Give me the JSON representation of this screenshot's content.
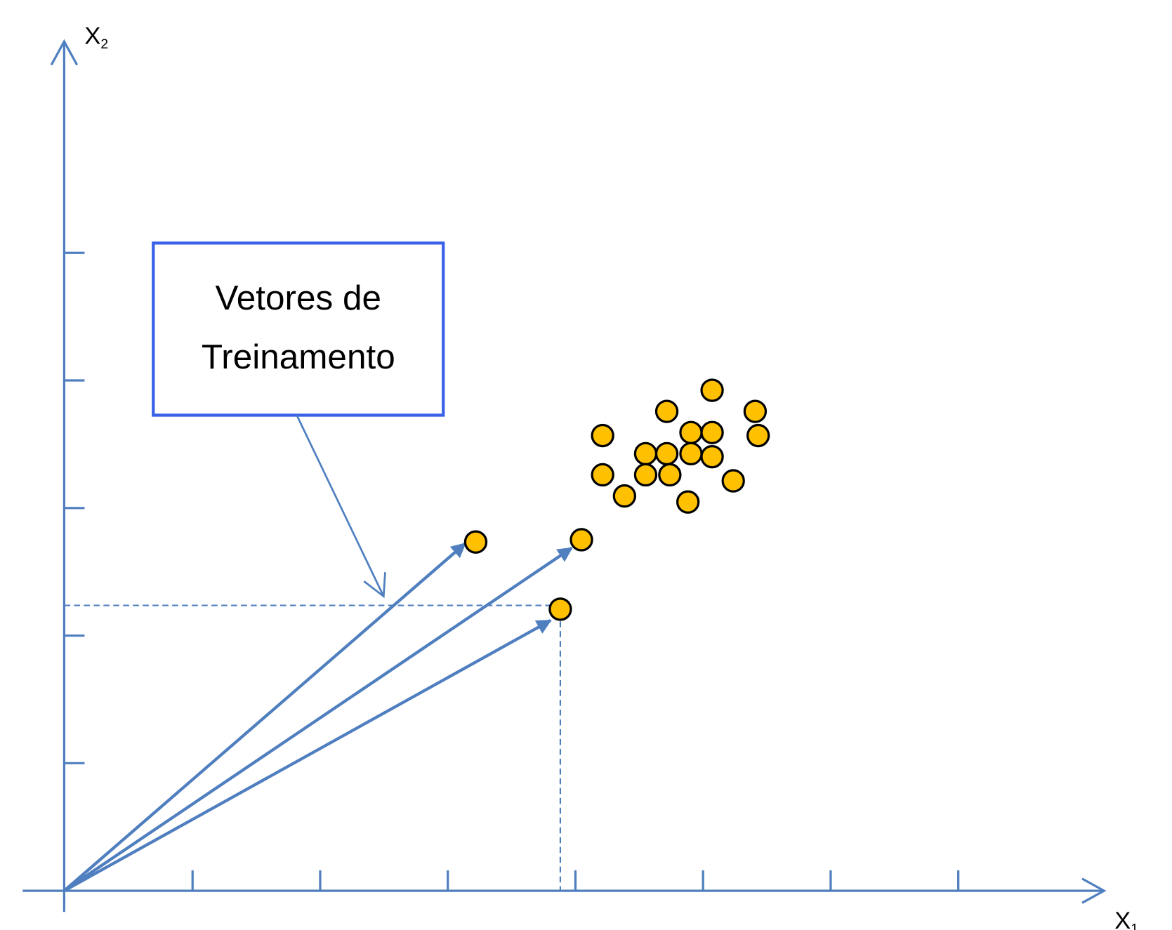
{
  "axes": {
    "y_label": {
      "text": "X",
      "subscript": "2"
    },
    "x_label": {
      "text": "X",
      "subscript": "1"
    }
  },
  "callout": {
    "lines": [
      "Vetores de",
      "Treinamento"
    ]
  }
}
